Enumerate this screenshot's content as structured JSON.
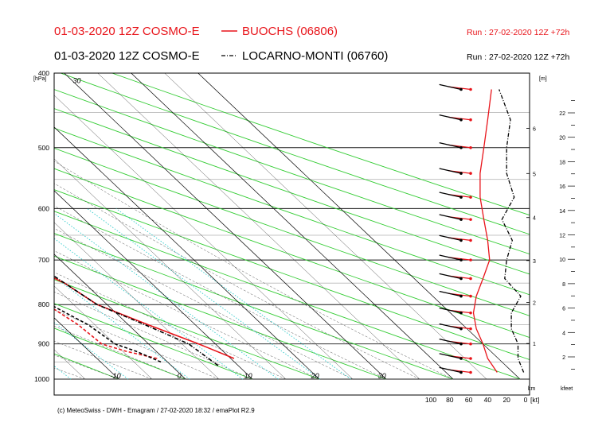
{
  "header": {
    "line1": {
      "run_label": "01-03-2020 12Z COSMO-E",
      "station": "BUOCHS (06806)",
      "run_info": "Run : 27-02-2020 12Z +72h",
      "color": "#e8141a"
    },
    "line2": {
      "run_label": "01-03-2020 12Z COSMO-E",
      "station": "LOCARNO-MONTI (06760)",
      "run_info": "Run : 27-02-2020 12Z +72h",
      "color": "#000000"
    }
  },
  "footer": {
    "credit": "(c) MeteoSwiss - DWH - Emagram / 27-02-2020  18:32 / emaPlot R2.9"
  },
  "colors": {
    "dry_adiabat": "#33cc33",
    "mixing_ratio": "#33cccc",
    "isotherm": "#000000",
    "isobar": "#000000",
    "buochs": "#e8141a",
    "locarno": "#000000"
  },
  "chart_data": {
    "type": "line",
    "title": "",
    "ylabel": "[hPa]",
    "yscale": "log",
    "ylim": [
      1000,
      400
    ],
    "xlim": [
      -70,
      40
    ],
    "pressure_ticks": [
      400,
      500,
      600,
      700,
      800,
      900,
      1000
    ],
    "temperature_labels": [
      {
        "t": -60,
        "label": "-60"
      },
      {
        "t": -50,
        "label": "-50"
      },
      {
        "t": -40,
        "label": "-40"
      },
      {
        "t": -30,
        "label": "-30"
      },
      {
        "t": -20,
        "label": "-20"
      },
      {
        "t": -10,
        "label": "-10"
      },
      {
        "t": 0,
        "label": "0"
      },
      {
        "t": 10,
        "label": "10"
      },
      {
        "t": 20,
        "label": "20"
      },
      {
        "t": 30,
        "label": "30"
      }
    ],
    "series": [
      {
        "name": "BUOCHS (06806)",
        "kind": "temperature",
        "style": "solid",
        "color": "#e8141a",
        "p": [
          940,
          900,
          850,
          800,
          750,
          700,
          650,
          600,
          550,
          500,
          450,
          400
        ],
        "t": [
          10.5,
          7.5,
          3.0,
          -1.5,
          -3.0,
          -6.5,
          -11.0,
          -15.0,
          -19.5,
          -26.0,
          -33.0,
          -40.0
        ]
      },
      {
        "name": "BUOCHS (06806)",
        "kind": "dewpoint",
        "style": "dashed",
        "color": "#e8141a",
        "p": [
          940,
          920,
          900,
          850,
          800,
          750,
          700,
          650,
          600,
          550,
          500,
          450,
          400
        ],
        "t": [
          -1.0,
          -4.5,
          -7.0,
          -7.5,
          -9.0,
          -9.0,
          -11.0,
          -15.0,
          -18.5,
          -23.5,
          -26.5,
          -30.0,
          -33.0
        ]
      },
      {
        "name": "LOCARNO-MONTI (06760)",
        "kind": "temperature",
        "style": "dashdot",
        "color": "#000000",
        "p": [
          960,
          900,
          850,
          800,
          750,
          700,
          650,
          600,
          550,
          500,
          450,
          400
        ],
        "t": [
          7.0,
          6.0,
          2.5,
          -1.5,
          -3.0,
          -4.5,
          -7.0,
          -11.0,
          -16.0,
          -23.0,
          -31.0,
          -38.0
        ]
      },
      {
        "name": "LOCARNO-MONTI (06760)",
        "kind": "dewpoint",
        "style": "dashed",
        "color": "#000000",
        "p": [
          950,
          920,
          900,
          850,
          800,
          750,
          700,
          650,
          600,
          550,
          500,
          450,
          400
        ],
        "t": [
          -1.0,
          -3.0,
          -5.0,
          -6.0,
          -8.5,
          -10.5,
          -13.0,
          -16.0,
          -19.5,
          -24.0,
          -27.0,
          -33.0,
          -34.0
        ]
      }
    ],
    "wind_axis": {
      "label": "[kt]",
      "ticks": [
        100,
        80,
        60,
        40,
        20,
        0
      ]
    },
    "wind_profiles": [
      {
        "name": "BUOCHS (06806)",
        "color": "#e8141a",
        "style": "solid",
        "p": [
          980,
          940,
          900,
          860,
          820,
          780,
          740,
          700,
          660,
          620,
          580,
          540,
          500,
          460,
          420
        ],
        "speed_kt": [
          30,
          40,
          45,
          52,
          55,
          52,
          45,
          38,
          40,
          44,
          48,
          48,
          44,
          40,
          36
        ]
      },
      {
        "name": "LOCARNO-MONTI (06760)",
        "color": "#000000",
        "style": "dashdot",
        "p": [
          980,
          940,
          900,
          860,
          820,
          780,
          740,
          700,
          660,
          620,
          580,
          540,
          500,
          460,
          420
        ],
        "speed_kt": [
          2,
          8,
          8,
          15,
          15,
          5,
          22,
          20,
          14,
          25,
          12,
          20,
          20,
          16,
          28
        ]
      }
    ],
    "height_km": {
      "label": "km",
      "unit": "[m]",
      "ticks": [
        1,
        2,
        3,
        4,
        5,
        6
      ]
    },
    "height_kfeet": {
      "label": "kfeet",
      "ticks": [
        2,
        4,
        6,
        8,
        10,
        12,
        14,
        16,
        18,
        20,
        22
      ]
    }
  }
}
